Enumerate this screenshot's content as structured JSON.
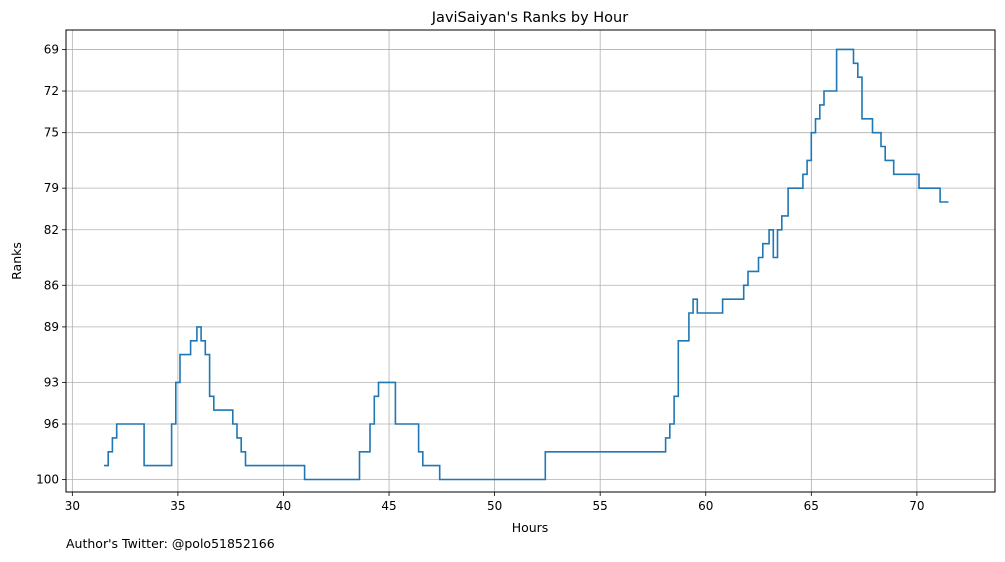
{
  "chart_data": {
    "type": "line",
    "title": "JaviSaiyan's Ranks by Hour",
    "xlabel": "Hours",
    "ylabel": "Ranks",
    "xlim": [
      29.7,
      73.7
    ],
    "ylim": [
      100.9,
      67.6
    ],
    "y_inverted": true,
    "grid": true,
    "step": true,
    "x_ticks": [
      30,
      35,
      40,
      45,
      50,
      55,
      60,
      65,
      70
    ],
    "x_tick_labels": [
      "30",
      "35",
      "40",
      "45",
      "50",
      "55",
      "60",
      "65",
      "70"
    ],
    "y_ticks": [
      69,
      72,
      75,
      79,
      82,
      86,
      89,
      93,
      96,
      100
    ],
    "y_tick_labels": [
      "69",
      "72",
      "75",
      "79",
      "82",
      "86",
      "89",
      "93",
      "96",
      "100"
    ],
    "line_color": "#1f77b4",
    "series": [
      {
        "name": "",
        "x": [
          31.5,
          31.7,
          31.9,
          32.1,
          33.4,
          34.7,
          34.9,
          35.1,
          35.6,
          35.9,
          36.1,
          36.3,
          36.5,
          36.7,
          37.6,
          37.8,
          38.0,
          38.2,
          40.4,
          41.0,
          42.0,
          43.6,
          44.1,
          44.3,
          44.5,
          44.7,
          45.3,
          46.4,
          46.6,
          46.8,
          47.2,
          47.4,
          52.4,
          57.6,
          58.1,
          58.3,
          58.5,
          58.7,
          59.2,
          59.4,
          59.6,
          60.6,
          60.8,
          61.8,
          62.0,
          62.5,
          62.7,
          63.0,
          63.2,
          63.4,
          63.6,
          63.9,
          64.6,
          64.8,
          65.0,
          65.2,
          65.4,
          65.6,
          66.2,
          66.8,
          67.0,
          67.2,
          67.4,
          67.9,
          68.3,
          68.5,
          68.9,
          69.4,
          70.1,
          71.1,
          71.5
        ],
        "y": [
          99,
          98,
          97,
          96,
          99,
          96,
          93,
          91,
          90,
          89,
          90,
          91,
          94,
          95,
          96,
          97,
          98,
          99,
          99,
          100,
          100,
          98,
          96,
          94,
          93,
          93,
          96,
          98,
          99,
          99,
          99,
          100,
          98,
          98,
          97,
          96,
          94,
          90,
          88,
          87,
          88,
          88,
          87,
          86,
          85,
          84,
          83,
          82,
          84,
          82,
          81,
          79,
          78,
          77,
          75,
          74,
          73,
          72,
          69,
          69,
          70,
          71,
          74,
          75,
          76,
          77,
          78,
          78,
          79,
          80,
          80
        ]
      }
    ]
  },
  "footer": {
    "author_text": "Author's Twitter: @polo51852166"
  }
}
